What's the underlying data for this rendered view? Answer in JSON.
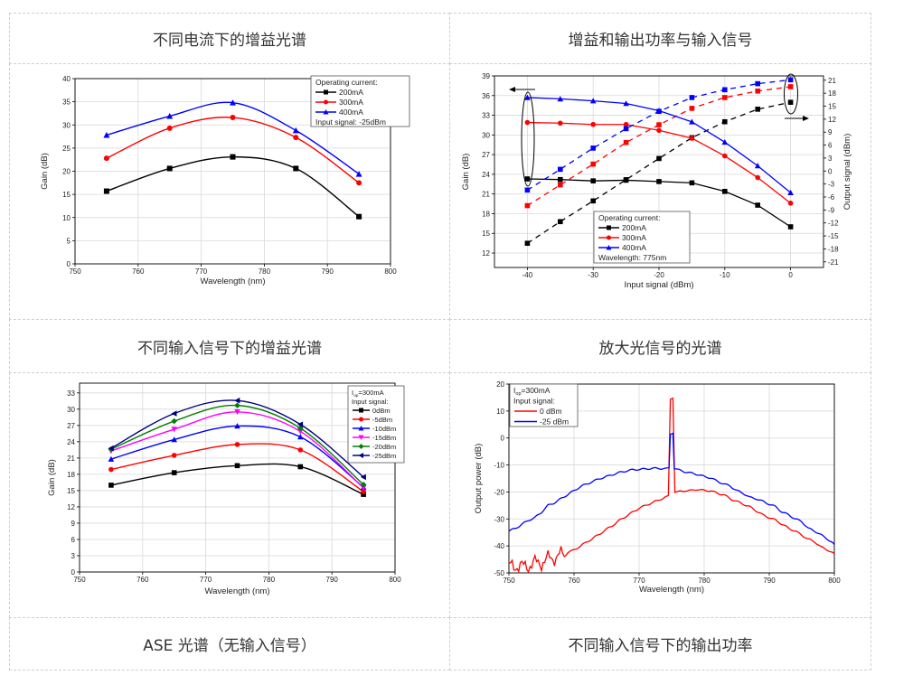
{
  "table": {
    "headers": [
      "不同电流下的增益光谱",
      "增益和输出功率与输入信号",
      "不同输入信号下的增益光谱",
      "放大光信号的光谱",
      "ASE 光谱（无输入信号）",
      "不同输入信号下的输出功率"
    ]
  },
  "chart_data": [
    {
      "type": "line",
      "xlabel": "Wavelength (nm)",
      "ylabel": "Gain (dB)",
      "xlim": [
        750,
        800
      ],
      "ylim": [
        0,
        40
      ],
      "xticks": [
        750,
        760,
        770,
        780,
        790,
        800
      ],
      "yticks": [
        0,
        5,
        10,
        15,
        20,
        25,
        30,
        35,
        40
      ],
      "grid": true,
      "legend_position": "top-right",
      "legend": {
        "title": "Operating current:",
        "footer": "Input signal: -25dBm"
      },
      "x": [
        755,
        765,
        775,
        785,
        795
      ],
      "series": [
        {
          "name": "200mA",
          "color": "#000000",
          "marker": "square",
          "values": [
            15.7,
            20.6,
            23.1,
            20.6,
            10.2
          ]
        },
        {
          "name": "300mA",
          "color": "#ff0000",
          "marker": "circle",
          "values": [
            22.8,
            29.3,
            31.6,
            27.3,
            17.5
          ]
        },
        {
          "name": "400mA",
          "color": "#0000ff",
          "marker": "triangle-up",
          "values": [
            27.8,
            31.9,
            34.8,
            28.8,
            19.4
          ]
        }
      ]
    },
    {
      "type": "line",
      "xlabel": "Input signal (dBm)",
      "ylabel": "Gain (dB)",
      "y2label": "Output signal (dBm)",
      "xlim": [
        -45,
        5
      ],
      "ylim": [
        9.8,
        39
      ],
      "y2lim": [
        -22.3,
        22
      ],
      "xticks": [
        -40,
        -30,
        -20,
        -10,
        0
      ],
      "yticks": [
        12,
        15,
        18,
        21,
        24,
        27,
        30,
        33,
        36,
        39
      ],
      "y2ticks": [
        -21,
        -18,
        -15,
        -12,
        -9,
        -6,
        -3,
        0,
        3,
        6,
        9,
        12,
        15,
        18,
        21
      ],
      "grid": true,
      "legend_position": "bottom-center",
      "legend": {
        "title": "Operating current:",
        "footer": "Wavelength: 775nm"
      },
      "x": [
        -40,
        -35,
        -30,
        -25,
        -20,
        -15,
        -10,
        -5,
        0
      ],
      "series": [
        {
          "name": "200mA",
          "color": "#000000",
          "marker": "square",
          "gain": [
            23.3,
            23.2,
            23.0,
            23.1,
            22.9,
            22.7,
            21.4,
            19.3,
            16.0
          ],
          "output": [
            -16.7,
            -11.7,
            -6.9,
            -2.0,
            2.9,
            7.7,
            11.4,
            14.3,
            15.9
          ]
        },
        {
          "name": "300mA",
          "color": "#ff0000",
          "marker": "circle",
          "gain": [
            31.9,
            31.8,
            31.6,
            31.6,
            30.7,
            29.5,
            26.8,
            23.5,
            19.6
          ],
          "output": [
            -8.0,
            -3.2,
            1.6,
            6.6,
            10.7,
            14.5,
            17.0,
            18.5,
            19.5
          ]
        },
        {
          "name": "400mA",
          "color": "#0000ff",
          "marker": "triangle-up",
          "gain": [
            35.7,
            35.5,
            35.2,
            34.8,
            33.7,
            32.0,
            28.9,
            25.3,
            21.2
          ],
          "output": [
            -4.4,
            0.4,
            5.3,
            9.8,
            13.8,
            17.0,
            18.8,
            20.2,
            21.1
          ]
        }
      ]
    },
    {
      "type": "line",
      "xlabel": "Wavelength (nm)",
      "ylabel": "Gain (dB)",
      "xlim": [
        750,
        800
      ],
      "ylim": [
        0,
        34.8
      ],
      "xticks": [
        750,
        760,
        770,
        780,
        790,
        800
      ],
      "yticks": [
        0,
        3,
        6,
        9,
        12,
        15,
        18,
        21,
        24,
        27,
        30,
        33
      ],
      "grid": true,
      "legend_position": "top-right",
      "legend": {
        "title_main": "I",
        "title_sub": "op",
        "title_rest": "=300mA",
        "subtitle": "Input signal:"
      },
      "x": [
        755,
        765,
        775,
        785,
        795
      ],
      "series": [
        {
          "name": "0dBm",
          "color": "#000000",
          "marker": "square",
          "values": [
            16.0,
            18.3,
            19.6,
            19.4,
            14.3
          ]
        },
        {
          "name": "-5dBm",
          "color": "#ff0000",
          "marker": "circle",
          "values": [
            18.9,
            21.5,
            23.5,
            22.5,
            14.8
          ]
        },
        {
          "name": "-10dBm",
          "color": "#0000ff",
          "marker": "triangle-up",
          "values": [
            20.8,
            24.4,
            26.9,
            24.9,
            15.6
          ]
        },
        {
          "name": "-15dBm",
          "color": "#ff00ff",
          "marker": "triangle-down",
          "values": [
            22.3,
            26.3,
            29.5,
            25.9,
            15.5
          ]
        },
        {
          "name": "-20dBm",
          "color": "#008000",
          "marker": "diamond",
          "values": [
            22.6,
            27.8,
            30.7,
            26.5,
            16.1
          ]
        },
        {
          "name": "-25dBm",
          "color": "#000080",
          "marker": "triangle-left",
          "values": [
            22.8,
            29.2,
            31.6,
            27.2,
            17.5
          ]
        }
      ]
    },
    {
      "type": "line",
      "xlabel": "Wavelength (nm)",
      "ylabel": "Output power (dB)",
      "xlim": [
        750,
        800
      ],
      "ylim": [
        -50,
        20
      ],
      "xticks": [
        750,
        760,
        770,
        780,
        790,
        800
      ],
      "yticks": [
        -50,
        -40,
        -30,
        -20,
        -10,
        0,
        10,
        20
      ],
      "grid": true,
      "legend_position": "top-left",
      "legend": {
        "title_main": "I",
        "title_sub": "op",
        "title_rest": "=300mA",
        "subtitle": "Input signal:"
      },
      "series": [
        {
          "name": "0 dBm",
          "color": "#ff0000",
          "marker": "none",
          "x": [
            750,
            751,
            752,
            753,
            754,
            755,
            756,
            757,
            758,
            759,
            760,
            761,
            762,
            763,
            764,
            765,
            766,
            767,
            768,
            769,
            770,
            771,
            772,
            773,
            774,
            774.5,
            774.8,
            775.2,
            775.5,
            776,
            777,
            778,
            779,
            780,
            781,
            782,
            783,
            784,
            785,
            786,
            787,
            788,
            789,
            790,
            791,
            792,
            793,
            794,
            795,
            796,
            797,
            798,
            799,
            800
          ],
          "values": [
            -48,
            -47,
            -48,
            -47,
            -46.5,
            -46,
            -45,
            -44,
            -43.5,
            -42.5,
            -41.5,
            -40,
            -38.5,
            -37,
            -35.5,
            -33.8,
            -32.3,
            -30.5,
            -29,
            -27.5,
            -26,
            -25,
            -24,
            -23,
            -22,
            -21.5,
            14.5,
            14.5,
            -20,
            -20,
            -19.5,
            -19.5,
            -19,
            -19.5,
            -19.5,
            -20.5,
            -21,
            -22.5,
            -23.5,
            -24.5,
            -25.5,
            -27,
            -28.5,
            -29.5,
            -30.5,
            -32,
            -33.5,
            -34.5,
            -36,
            -37.5,
            -38.5,
            -40.5,
            -41.5,
            -43
          ]
        },
        {
          "name": "-25 dBm",
          "color": "#0000ff",
          "marker": "none",
          "x": [
            750,
            751,
            752,
            753,
            754,
            755,
            756,
            757,
            758,
            759,
            760,
            761,
            762,
            763,
            764,
            765,
            766,
            767,
            768,
            769,
            770,
            771,
            772,
            773,
            774,
            774.6,
            774.8,
            775.2,
            775.4,
            776,
            777,
            778,
            779,
            780,
            781,
            782,
            783,
            784,
            785,
            786,
            787,
            788,
            789,
            790,
            791,
            792,
            793,
            794,
            795,
            796,
            797,
            798,
            799,
            800
          ],
          "values": [
            -34.5,
            -33.5,
            -32,
            -30.5,
            -29.5,
            -27.5,
            -25,
            -24,
            -22.5,
            -21,
            -19.5,
            -18,
            -17,
            -16,
            -15,
            -14.3,
            -13.5,
            -12.8,
            -12.2,
            -11.8,
            -11.6,
            -11.5,
            -11.2,
            -11.3,
            -11.3,
            -11.3,
            1.5,
            1.5,
            -11.5,
            -11.8,
            -12.5,
            -13,
            -13.5,
            -14.3,
            -14.8,
            -16,
            -17,
            -17.8,
            -19.5,
            -20.5,
            -22,
            -22.5,
            -23.5,
            -24.5,
            -25.5,
            -27.5,
            -28.5,
            -30,
            -31,
            -33.5,
            -34.5,
            -36,
            -37.5,
            -39.5
          ]
        }
      ]
    }
  ]
}
